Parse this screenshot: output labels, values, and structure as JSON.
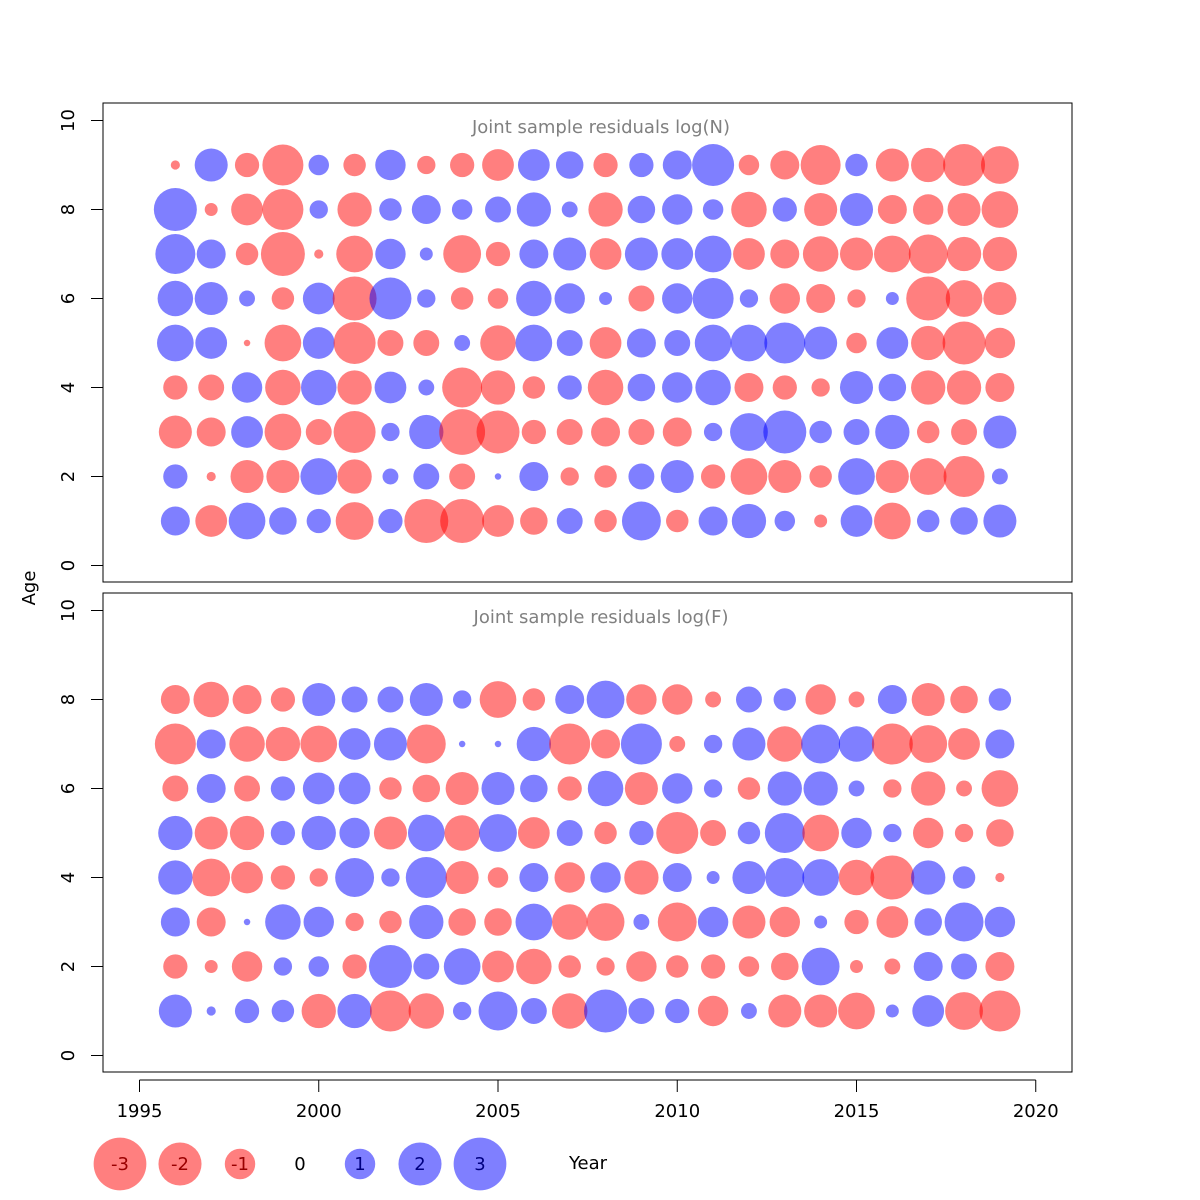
{
  "chart_data": [
    {
      "type": "bubble",
      "panel_id": "N",
      "title": "Joint sample residuals log(N)",
      "xlabel": "",
      "ylabel": "Age",
      "xlim": [
        1994,
        2021
      ],
      "ylim": [
        0,
        10
      ],
      "y_ticks": [
        0,
        2,
        4,
        6,
        8,
        10
      ],
      "x": [
        1996,
        1997,
        1998,
        1999,
        2000,
        2001,
        2002,
        2003,
        2004,
        2005,
        2006,
        2007,
        2008,
        2009,
        2010,
        2011,
        2012,
        2013,
        2014,
        2015,
        2016,
        2017,
        2018,
        2019
      ],
      "ages": [
        1,
        2,
        3,
        4,
        5,
        6,
        7,
        8,
        9
      ],
      "residuals": {
        "1": [
          1.0,
          -1.2,
          1.6,
          0.9,
          0.7,
          -1.7,
          0.7,
          -2.3,
          -2.3,
          -1.2,
          -0.9,
          0.8,
          -0.6,
          1.8,
          -0.6,
          1.0,
          1.4,
          0.5,
          -0.2,
          1.2,
          -1.6,
          0.6,
          0.9,
          1.3
        ],
        "2": [
          0.7,
          -0.1,
          -1.3,
          -1.3,
          1.6,
          -1.4,
          0.3,
          0.8,
          -0.8,
          0.05,
          1.0,
          -0.4,
          -0.6,
          0.8,
          1.3,
          -0.7,
          -1.6,
          -1.3,
          -0.6,
          1.6,
          -1.3,
          -1.6,
          -2.0,
          0.3
        ],
        "3": [
          -1.3,
          -1.0,
          1.2,
          -1.6,
          -0.8,
          -2.1,
          0.4,
          1.4,
          -2.5,
          -2.2,
          -0.7,
          -0.8,
          -1.0,
          -0.8,
          -1.0,
          0.4,
          1.7,
          2.2,
          0.6,
          0.8,
          1.4,
          -0.6,
          -0.8,
          1.3
        ],
        "4": [
          -0.7,
          -0.8,
          1.1,
          -1.5,
          1.5,
          -1.4,
          1.2,
          0.3,
          -1.9,
          -1.4,
          -0.6,
          0.7,
          -1.5,
          0.9,
          1.1,
          1.5,
          -1.0,
          -0.7,
          -0.4,
          1.3,
          0.9,
          -1.4,
          -1.4,
          -1.0
        ],
        "5": [
          1.6,
          1.2,
          -0.05,
          -1.6,
          1.2,
          -2.1,
          -0.8,
          -0.8,
          0.3,
          -1.5,
          1.6,
          0.8,
          -1.2,
          1.0,
          0.8,
          1.6,
          1.6,
          2.0,
          1.3,
          -0.5,
          1.2,
          -1.4,
          -2.2,
          -1.1
        ],
        "6": [
          1.5,
          1.3,
          0.3,
          -0.6,
          1.2,
          -2.3,
          2.1,
          0.4,
          -0.6,
          -0.5,
          1.5,
          1.1,
          0.2,
          -0.8,
          1.1,
          2.0,
          0.4,
          -1.1,
          -1.0,
          -0.4,
          0.2,
          -2.3,
          -1.6,
          -1.3
        ],
        "7": [
          1.9,
          1.0,
          -0.6,
          -2.3,
          -0.1,
          -1.6,
          1.1,
          0.2,
          -1.7,
          -0.7,
          1.0,
          1.3,
          -1.2,
          1.3,
          1.2,
          1.6,
          -1.2,
          -1.0,
          -1.5,
          -1.3,
          -1.6,
          -1.8,
          -1.4,
          -1.4
        ],
        "8": [
          2.2,
          -0.2,
          -1.2,
          -2.0,
          0.4,
          -1.4,
          0.6,
          1.0,
          0.5,
          0.8,
          1.4,
          0.3,
          -1.4,
          0.9,
          1.1,
          0.5,
          -1.5,
          0.7,
          -1.3,
          1.3,
          -1.0,
          -1.1,
          -1.3,
          -1.6
        ],
        "9": [
          -0.1,
          1.3,
          -0.7,
          -2.0,
          0.5,
          -0.6,
          1.1,
          -0.4,
          -0.7,
          -1.2,
          1.2,
          0.9,
          -0.7,
          0.7,
          1.0,
          2.1,
          -0.5,
          -1.0,
          -1.9,
          0.6,
          -1.3,
          -1.4,
          -2.1,
          -1.7
        ]
      }
    },
    {
      "type": "bubble",
      "panel_id": "F",
      "title": "Joint sample residuals log(F)",
      "xlabel": "Year",
      "ylabel": "Age",
      "xlim": [
        1994,
        2021
      ],
      "ylim": [
        0,
        10
      ],
      "y_ticks": [
        0,
        2,
        4,
        6,
        8,
        10
      ],
      "x_ticks": [
        1995,
        2000,
        2005,
        2010,
        2015,
        2020
      ],
      "x": [
        1996,
        1997,
        1998,
        1999,
        2000,
        2001,
        2002,
        2003,
        2004,
        2005,
        2006,
        2007,
        2008,
        2009,
        2010,
        2011,
        2012,
        2013,
        2014,
        2015,
        2016,
        2017,
        2018,
        2019
      ],
      "ages": [
        1,
        2,
        3,
        4,
        5,
        6,
        7,
        8
      ],
      "residuals": {
        "1": [
          1.3,
          0.1,
          0.7,
          0.6,
          -1.4,
          1.4,
          -2.0,
          -1.5,
          0.4,
          1.8,
          0.8,
          -1.5,
          2.2,
          0.8,
          0.7,
          -1.1,
          0.3,
          -1.3,
          -1.3,
          -1.6,
          0.2,
          1.2,
          -1.7,
          -2.0
        ],
        "2": [
          -0.7,
          -0.2,
          -1.1,
          0.4,
          0.5,
          -0.7,
          2.2,
          0.8,
          1.6,
          -1.2,
          -1.5,
          -0.6,
          -0.4,
          -1.1,
          -0.6,
          -0.7,
          -0.5,
          -0.9,
          1.7,
          -0.2,
          -0.3,
          1.0,
          0.8,
          -1.0
        ],
        "3": [
          1.0,
          -1.0,
          0.05,
          1.5,
          1.1,
          -0.4,
          -0.6,
          1.4,
          -0.9,
          -0.9,
          1.6,
          -1.5,
          -1.7,
          0.3,
          -1.8,
          1.1,
          -1.3,
          -1.1,
          0.2,
          -0.7,
          -1.2,
          0.9,
          1.8,
          1.1
        ],
        "4": [
          1.4,
          -1.7,
          -1.2,
          -0.7,
          -0.4,
          1.8,
          0.4,
          2.0,
          -1.3,
          -0.5,
          1.0,
          -1.1,
          1.1,
          -1.4,
          1.0,
          0.2,
          1.3,
          1.8,
          1.6,
          -1.5,
          -2.3,
          1.4,
          0.6,
          -0.1
        ],
        "5": [
          1.4,
          -1.3,
          -1.4,
          0.7,
          1.4,
          1.1,
          -1.3,
          1.6,
          -1.5,
          1.7,
          -1.2,
          0.8,
          -0.6,
          0.7,
          -2.1,
          -0.8,
          0.6,
          1.9,
          -1.6,
          1.1,
          0.4,
          -1.1,
          -0.4,
          -0.9
        ],
        "6": [
          -0.8,
          1.0,
          -0.8,
          0.7,
          1.2,
          1.2,
          -0.6,
          -0.9,
          -1.3,
          1.3,
          0.9,
          -0.7,
          1.5,
          -1.3,
          1.1,
          0.4,
          -0.6,
          1.4,
          1.4,
          0.3,
          -0.4,
          -1.4,
          -0.3,
          -1.6
        ],
        "7": [
          -2.0,
          1.0,
          -1.5,
          -1.4,
          -1.6,
          1.2,
          1.3,
          -1.8,
          0.05,
          0.05,
          1.4,
          -2.0,
          -1.0,
          2.0,
          -0.3,
          0.4,
          1.3,
          -1.5,
          1.8,
          1.5,
          -2.0,
          -1.7,
          -1.2,
          1.0
        ],
        "8": [
          -1.0,
          -1.5,
          -1.0,
          -0.7,
          1.3,
          0.8,
          0.8,
          1.3,
          0.4,
          -1.6,
          -0.6,
          1.0,
          1.7,
          -1.1,
          -1.1,
          -0.3,
          0.8,
          0.6,
          -1.1,
          -0.3,
          1.0,
          -1.3,
          -0.9,
          0.6
        ]
      }
    }
  ],
  "legend": {
    "position": "bottom-left",
    "items": [
      "-3",
      "-2",
      "-1",
      "0",
      "1",
      "2",
      "3"
    ],
    "values": [
      -3,
      -2,
      -1,
      0,
      1,
      2,
      3
    ]
  },
  "axes": {
    "shared_ylabel": "Age",
    "shared_xlabel": "Year"
  },
  "colors": {
    "negative": "#ff0000",
    "positive": "#0000ff",
    "negative_text": "#990000",
    "positive_text": "#000080",
    "title": "#808080",
    "axis": "#000000"
  }
}
